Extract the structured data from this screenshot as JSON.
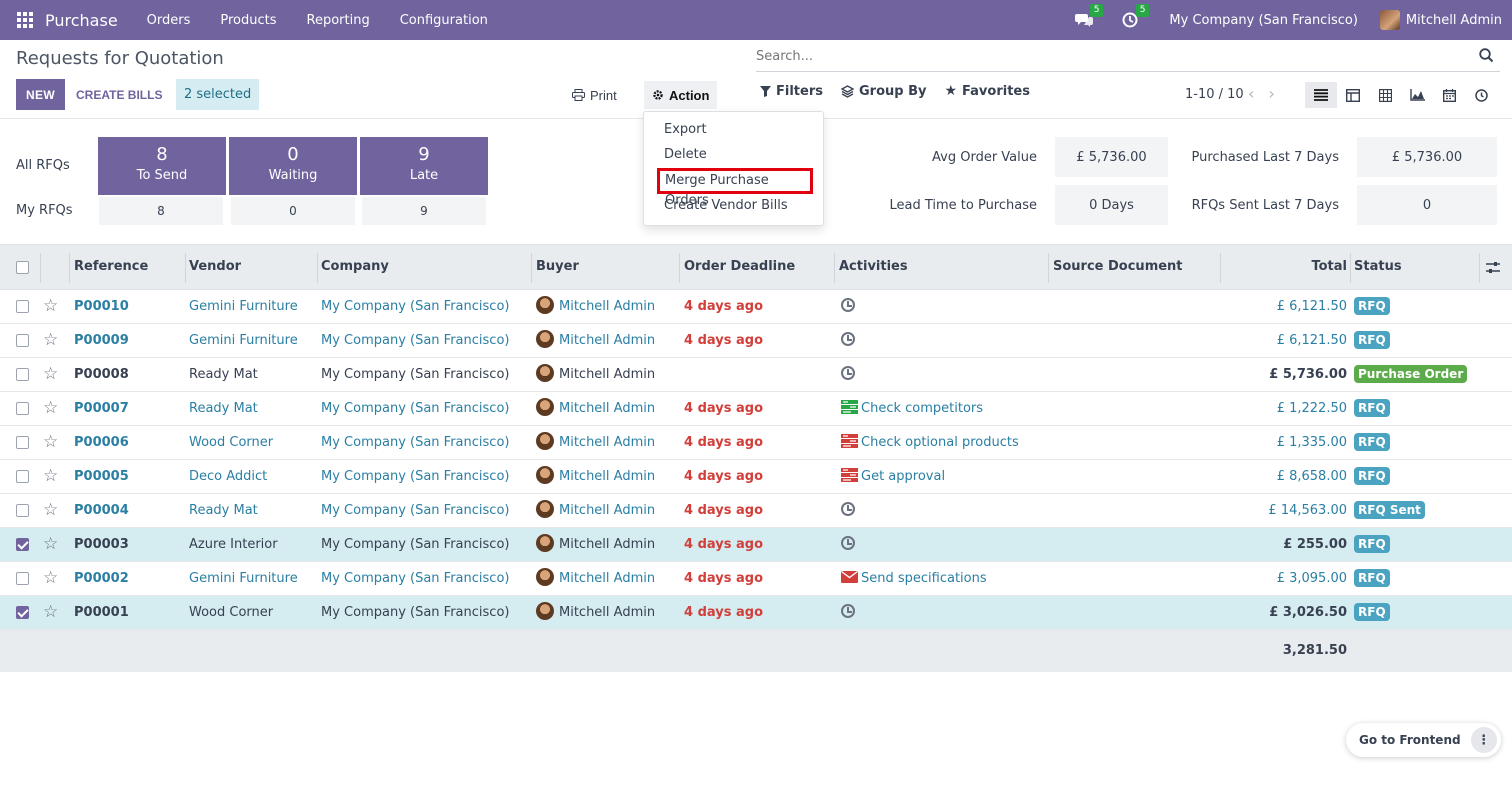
{
  "topbar": {
    "app_name": "Purchase",
    "menu": [
      "Orders",
      "Products",
      "Reporting",
      "Configuration"
    ],
    "messages_count": "5",
    "activities_count": "5",
    "company": "My Company (San Francisco)",
    "user": "Mitchell Admin"
  },
  "control_panel": {
    "breadcrumb": "Requests for Quotation",
    "new_label": "NEW",
    "create_bills_label": "CREATE BILLS",
    "selected_label": "2 selected",
    "print_label": "Print",
    "action_label": "Action",
    "search_placeholder": "Search...",
    "filters_label": "Filters",
    "group_by_label": "Group By",
    "favorites_label": "Favorites",
    "pager": "1-10 / 10"
  },
  "action_menu": {
    "items": [
      "Export",
      "Delete",
      "Merge Purchase Orders",
      "Create Vendor Bills"
    ],
    "highlighted": "Merge Purchase Orders"
  },
  "dashboard": {
    "all_rfqs_label": "All RFQs",
    "my_rfqs_label": "My RFQs",
    "tiles": [
      {
        "value": "8",
        "label": "To Send",
        "mine": "8"
      },
      {
        "value": "0",
        "label": "Waiting",
        "mine": "0"
      },
      {
        "value": "9",
        "label": "Late",
        "mine": "9"
      }
    ],
    "kpis": [
      {
        "label": "Avg Order Value",
        "value": "£ 5,736.00"
      },
      {
        "label": "Purchased Last 7 Days",
        "value": "£ 5,736.00"
      },
      {
        "label": "Lead Time to Purchase",
        "value": "0 Days"
      },
      {
        "label": "RFQs Sent Last 7 Days",
        "value": "0"
      }
    ]
  },
  "table": {
    "columns": [
      "Reference",
      "Vendor",
      "Company",
      "Buyer",
      "Order Deadline",
      "Activities",
      "Source Document",
      "Total",
      "Status"
    ],
    "rows": [
      {
        "ref": "P00010",
        "vendor": "Gemini Furniture",
        "company": "My Company (San Francisco)",
        "buyer": "Mitchell Admin",
        "deadline": "4 days ago",
        "activity": "",
        "activity_icon": "clock-icon",
        "total": "£ 6,121.50",
        "status": "RFQ",
        "selected": false,
        "style": "link"
      },
      {
        "ref": "P00009",
        "vendor": "Gemini Furniture",
        "company": "My Company (San Francisco)",
        "buyer": "Mitchell Admin",
        "deadline": "4 days ago",
        "activity": "",
        "activity_icon": "clock-icon",
        "total": "£ 6,121.50",
        "status": "RFQ",
        "selected": false,
        "style": "link"
      },
      {
        "ref": "P00008",
        "vendor": "Ready Mat",
        "company": "My Company (San Francisco)",
        "buyer": "Mitchell Admin",
        "deadline": "",
        "activity": "",
        "activity_icon": "clock-icon",
        "total": "£ 5,736.00",
        "status": "Purchase Order",
        "selected": false,
        "style": "plain"
      },
      {
        "ref": "P00007",
        "vendor": "Ready Mat",
        "company": "My Company (San Francisco)",
        "buyer": "Mitchell Admin",
        "deadline": "4 days ago",
        "activity": "Check competitors",
        "activity_icon": "tasks-green-icon",
        "total": "£ 1,222.50",
        "status": "RFQ",
        "selected": false,
        "style": "link"
      },
      {
        "ref": "P00006",
        "vendor": "Wood Corner",
        "company": "My Company (San Francisco)",
        "buyer": "Mitchell Admin",
        "deadline": "4 days ago",
        "activity": "Check optional products",
        "activity_icon": "tasks-red-icon",
        "total": "£ 1,335.00",
        "status": "RFQ",
        "selected": false,
        "style": "link"
      },
      {
        "ref": "P00005",
        "vendor": "Deco Addict",
        "company": "My Company (San Francisco)",
        "buyer": "Mitchell Admin",
        "deadline": "4 days ago",
        "activity": "Get approval",
        "activity_icon": "tasks-red-icon",
        "total": "£ 8,658.00",
        "status": "RFQ",
        "selected": false,
        "style": "link"
      },
      {
        "ref": "P00004",
        "vendor": "Ready Mat",
        "company": "My Company (San Francisco)",
        "buyer": "Mitchell Admin",
        "deadline": "4 days ago",
        "activity": "",
        "activity_icon": "clock-icon",
        "total": "£ 14,563.00",
        "status": "RFQ Sent",
        "selected": false,
        "style": "link"
      },
      {
        "ref": "P00003",
        "vendor": "Azure Interior",
        "company": "My Company (San Francisco)",
        "buyer": "Mitchell Admin",
        "deadline": "4 days ago",
        "activity": "",
        "activity_icon": "clock-icon",
        "total": "£ 255.00",
        "status": "RFQ",
        "selected": true,
        "style": "plain"
      },
      {
        "ref": "P00002",
        "vendor": "Gemini Furniture",
        "company": "My Company (San Francisco)",
        "buyer": "Mitchell Admin",
        "deadline": "4 days ago",
        "activity": "Send specifications",
        "activity_icon": "envelope-red-icon",
        "total": "£ 3,095.00",
        "status": "RFQ",
        "selected": false,
        "style": "link"
      },
      {
        "ref": "P00001",
        "vendor": "Wood Corner",
        "company": "My Company (San Francisco)",
        "buyer": "Mitchell Admin",
        "deadline": "4 days ago",
        "activity": "",
        "activity_icon": "clock-icon",
        "total": "£ 3,026.50",
        "status": "RFQ",
        "selected": true,
        "style": "plain"
      }
    ],
    "footer_total": "3,281.50"
  },
  "colors": {
    "brand": "#71639e",
    "link": "#2a7fa3",
    "late": "#d23f3a",
    "badge_rfq": "#4aa3c0",
    "badge_po": "#5bab4a",
    "selected_row": "#d5ecf0"
  },
  "go_to_frontend_label": "Go to Frontend"
}
